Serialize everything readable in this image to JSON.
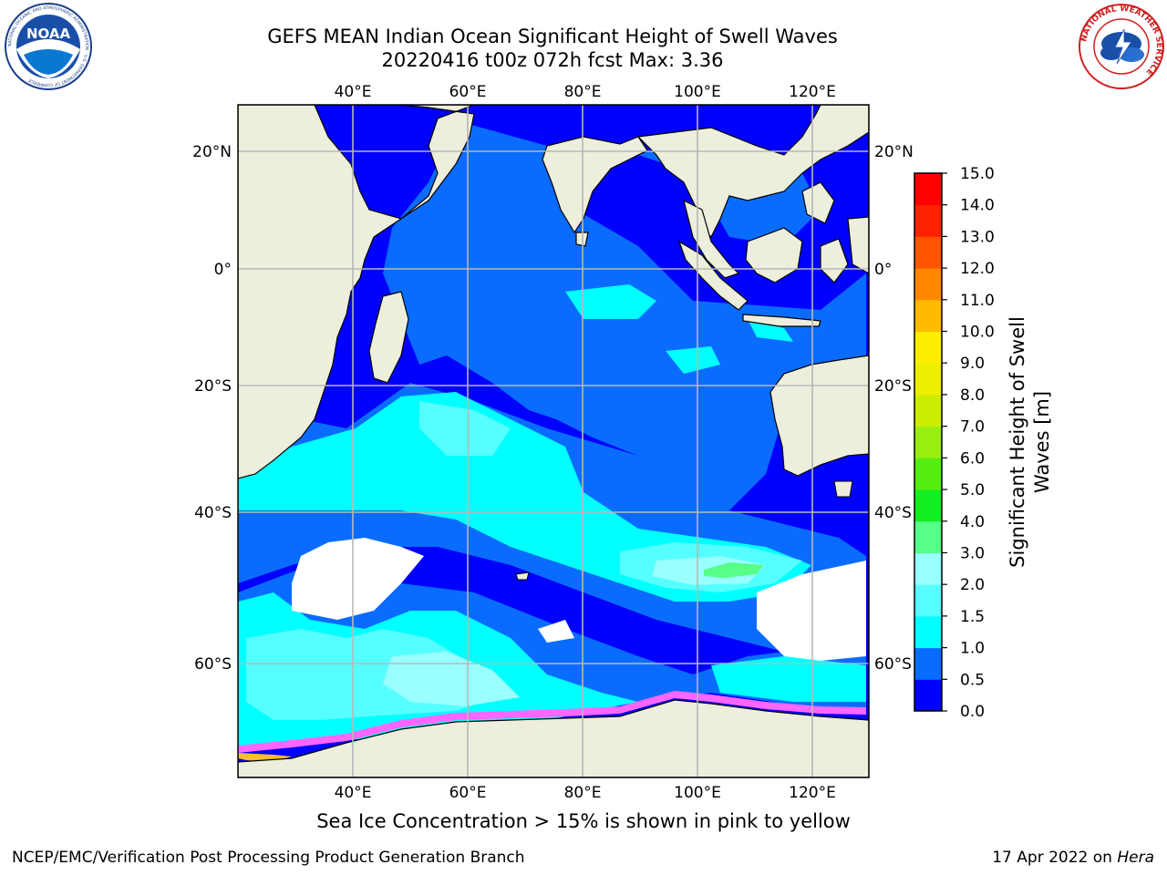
{
  "title": {
    "line1": "GEFS MEAN Indian Ocean Significant Height of Swell Waves",
    "line2": "20220416 t00z 072h fcst   Max: 3.36"
  },
  "logos": {
    "left": {
      "icon": "noaa-logo",
      "text": "NOAA",
      "ring_text": "NATIONAL OCEANIC AND ATMOSPHERIC ADMINISTRATION · U.S. DEPARTMENT OF COMMERCE"
    },
    "right": {
      "icon": "nws-logo",
      "ring_text": "NATIONAL WEATHER SERVICE"
    }
  },
  "map": {
    "top_lon_labels": [
      "40°E",
      "60°E",
      "80°E",
      "100°E",
      "120°E"
    ],
    "bottom_lon_labels": [
      "40°E",
      "60°E",
      "80°E",
      "100°E",
      "120°E"
    ],
    "left_lat_labels": [
      "20°N",
      "0°",
      "20°S",
      "40°S",
      "60°S"
    ],
    "right_lat_labels": [
      "20°N",
      "0°",
      "20°S",
      "40°S",
      "60°S"
    ],
    "land_color": "#eeeedd",
    "grid_color": "#b8b8b8"
  },
  "colorbar": {
    "label": "Significant Height of Swell Waves [m]",
    "label_line1": "Significant Height of Swell",
    "label_line2": "Waves [m]",
    "ticks": [
      "0.0",
      "0.5",
      "1.0",
      "1.5",
      "2.0",
      "3.0",
      "4.0",
      "5.0",
      "6.0",
      "7.0",
      "8.0",
      "9.0",
      "10.0",
      "11.0",
      "12.0",
      "13.0",
      "14.0",
      "15.0"
    ],
    "colors": [
      "#0000ff",
      "#0a6cff",
      "#00ffff",
      "#55ffff",
      "#99ffff",
      "#55ff88",
      "#11ee22",
      "#55ee11",
      "#99ee11",
      "#ccee00",
      "#eeee00",
      "#ffee00",
      "#ffbb00",
      "#ff8800",
      "#ff5500",
      "#ff2200",
      "#ff0000"
    ]
  },
  "note": "Sea Ice Concentration > 15% is shown in pink to yellow",
  "footer": {
    "left": "NCEP/EMC/Verification Post Processing Product Generation Branch",
    "right_prefix": "17 Apr 2022 on ",
    "right_host": "Hera"
  }
}
